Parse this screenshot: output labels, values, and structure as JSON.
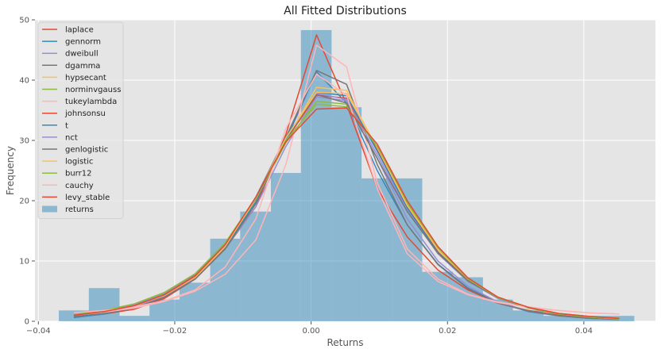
{
  "chart_data": {
    "type": "histogram-with-fitted-lines",
    "title": "All Fitted Distributions",
    "xlabel": "Returns",
    "ylabel": "Frequency",
    "xlim": [
      -0.0405,
      0.0505
    ],
    "ylim": [
      0,
      50
    ],
    "xticks": [
      -0.04,
      -0.02,
      0.0,
      0.02,
      0.04
    ],
    "xtick_labels": [
      "−0.04",
      "−0.02",
      "0.00",
      "0.02",
      "0.04"
    ],
    "yticks": [
      0,
      10,
      20,
      30,
      40,
      50
    ],
    "ytick_labels": [
      "0",
      "10",
      "20",
      "30",
      "40",
      "50"
    ],
    "grid": true,
    "legend_position": "upper-left",
    "histogram": {
      "name": "returns",
      "color": "#348ABD",
      "bin_edges": [
        -0.037,
        -0.0326,
        -0.0281,
        -0.0237,
        -0.0193,
        -0.0148,
        -0.0104,
        -0.0059,
        -0.0015,
        0.003,
        0.0074,
        0.0119,
        0.0163,
        0.0208,
        0.0252,
        0.0296,
        0.0341,
        0.0385,
        0.043,
        0.0474
      ],
      "counts": [
        1.8,
        5.5,
        0.9,
        3.6,
        6.4,
        13.7,
        18.2,
        24.6,
        48.3,
        35.5,
        23.7,
        23.7,
        8.2,
        7.3,
        3.6,
        1.8,
        0.9,
        0.9,
        0.9
      ]
    },
    "x": [
      -0.0348,
      -0.0304,
      -0.0259,
      -0.0215,
      -0.017,
      -0.0126,
      -0.0081,
      -0.0037,
      0.0008,
      0.0052,
      0.0097,
      0.0141,
      0.0186,
      0.023,
      0.0274,
      0.0319,
      0.0363,
      0.0408,
      0.0452
    ],
    "series": [
      {
        "name": "laplace",
        "color": "#E24A33",
        "values": [
          0.8,
          1.2,
          2.0,
          3.8,
          7.0,
          12.0,
          19.0,
          31.0,
          47.5,
          36.0,
          22.0,
          14.0,
          8.5,
          5.2,
          3.0,
          1.8,
          1.0,
          0.6,
          0.4
        ]
      },
      {
        "name": "gennorm",
        "color": "#348ABD",
        "values": [
          0.6,
          1.2,
          2.3,
          4.2,
          7.4,
          12.3,
          19.8,
          30.0,
          41.4,
          36.2,
          25.0,
          16.0,
          9.5,
          5.5,
          3.1,
          1.6,
          0.9,
          0.5,
          0.3
        ]
      },
      {
        "name": "dweibull",
        "color": "#988ED5",
        "values": [
          0.8,
          1.3,
          2.3,
          4.1,
          7.2,
          12.0,
          19.0,
          29.0,
          37.2,
          36.6,
          27.0,
          17.0,
          10.0,
          5.8,
          3.2,
          1.7,
          0.9,
          0.5,
          0.3
        ]
      },
      {
        "name": "dgamma",
        "color": "#777777",
        "values": [
          0.8,
          1.3,
          2.2,
          4.0,
          7.0,
          12.0,
          19.5,
          30.5,
          41.6,
          39.3,
          26.0,
          16.0,
          9.4,
          5.4,
          3.0,
          1.7,
          0.9,
          0.5,
          0.3
        ]
      },
      {
        "name": "hypsecant",
        "color": "#FBC15E",
        "values": [
          1.0,
          1.6,
          2.6,
          4.3,
          7.4,
          12.6,
          20.5,
          30.0,
          38.8,
          38.3,
          28.6,
          19.0,
          11.8,
          7.0,
          4.0,
          2.3,
          1.3,
          0.8,
          0.5
        ]
      },
      {
        "name": "norminvgauss",
        "color": "#8EBA42",
        "values": [
          1.0,
          1.7,
          2.8,
          4.6,
          7.6,
          12.6,
          20.2,
          29.6,
          36.5,
          36.0,
          28.8,
          19.5,
          12.0,
          7.0,
          4.0,
          2.3,
          1.3,
          0.8,
          0.5
        ]
      },
      {
        "name": "tukeylambda",
        "color": "#FFB5B8",
        "values": [
          1.0,
          1.5,
          2.2,
          3.3,
          5.0,
          7.8,
          13.5,
          26.0,
          45.8,
          42.2,
          23.0,
          12.0,
          7.0,
          4.5,
          3.2,
          2.4,
          1.8,
          1.4,
          1.2
        ]
      },
      {
        "name": "johnsonsu",
        "color": "#E24A33",
        "values": [
          1.0,
          1.6,
          2.7,
          4.5,
          7.7,
          12.8,
          20.5,
          30.0,
          37.5,
          37.0,
          28.5,
          19.0,
          11.5,
          6.8,
          3.8,
          2.2,
          1.2,
          0.7,
          0.4
        ]
      },
      {
        "name": "t",
        "color": "#348ABD",
        "values": [
          1.0,
          1.6,
          2.7,
          4.5,
          7.6,
          12.7,
          20.3,
          30.2,
          38.0,
          37.4,
          28.2,
          18.8,
          11.4,
          6.7,
          3.8,
          2.2,
          1.2,
          0.7,
          0.4
        ]
      },
      {
        "name": "nct",
        "color": "#988ED5",
        "values": [
          1.0,
          1.6,
          2.7,
          4.5,
          7.6,
          12.8,
          20.6,
          30.4,
          37.8,
          36.8,
          27.6,
          18.4,
          11.2,
          6.6,
          3.8,
          2.2,
          1.2,
          0.7,
          0.4
        ]
      },
      {
        "name": "genlogistic",
        "color": "#777777",
        "values": [
          1.0,
          1.6,
          2.6,
          4.4,
          7.5,
          12.7,
          20.6,
          30.6,
          37.6,
          36.2,
          27.0,
          18.2,
          11.3,
          6.7,
          3.9,
          2.2,
          1.2,
          0.7,
          0.4
        ]
      },
      {
        "name": "logistic",
        "color": "#FBC15E",
        "values": [
          1.0,
          1.6,
          2.6,
          4.3,
          7.3,
          12.4,
          20.4,
          30.4,
          38.0,
          37.8,
          28.8,
          19.2,
          11.9,
          7.0,
          4.0,
          2.3,
          1.3,
          0.7,
          0.4
        ]
      },
      {
        "name": "burr12",
        "color": "#8EBA42",
        "values": [
          1.1,
          1.8,
          2.9,
          4.8,
          7.9,
          13.0,
          20.5,
          30.0,
          36.0,
          35.6,
          29.0,
          19.8,
          12.2,
          7.0,
          3.9,
          2.2,
          1.2,
          0.7,
          0.4
        ]
      },
      {
        "name": "cauchy",
        "color": "#FFB5B8",
        "values": [
          1.4,
          1.8,
          2.4,
          3.4,
          5.2,
          9.0,
          17.0,
          32.0,
          41.0,
          37.5,
          22.0,
          11.2,
          6.6,
          4.4,
          3.1,
          2.3,
          1.8,
          1.4,
          1.2
        ]
      },
      {
        "name": "levy_stable",
        "color": "#E24A33",
        "values": [
          1.0,
          1.6,
          2.6,
          4.4,
          7.5,
          12.7,
          20.6,
          29.8,
          35.2,
          35.4,
          29.4,
          20.0,
          12.4,
          7.2,
          4.0,
          2.3,
          1.3,
          0.8,
          0.5
        ]
      }
    ]
  }
}
